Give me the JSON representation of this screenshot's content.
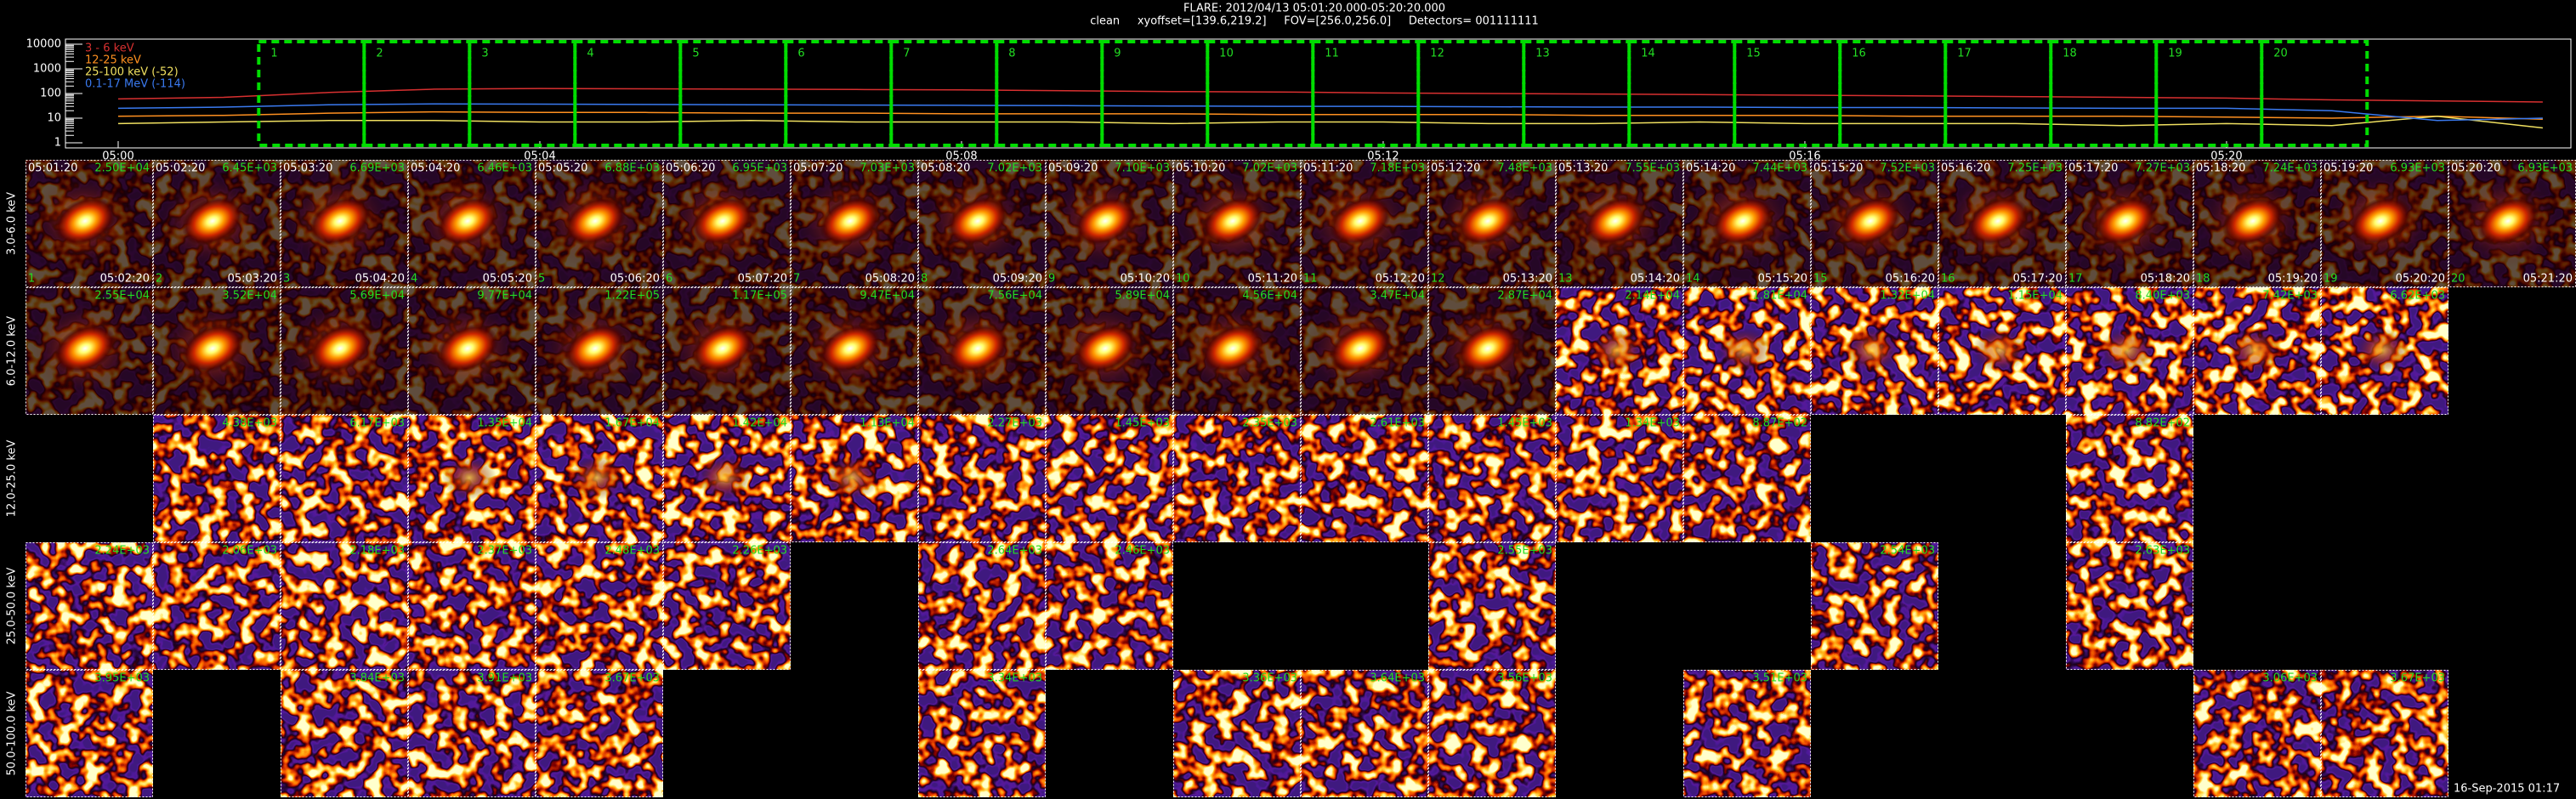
{
  "header": {
    "title": "FLARE: 2012/04/13 05:01:20.000-05:20:20.000",
    "subtitle": "clean     xyoffset=[139.6,219.2]     FOV=[256.0,256.0]     Detectors= 001111111"
  },
  "chart_data": {
    "type": "line",
    "log_scale": true,
    "x": [
      "05:00:00",
      "05:01:00",
      "05:02:00",
      "05:03:00",
      "05:04:00",
      "05:05:00",
      "05:06:00",
      "05:07:00",
      "05:08:00",
      "05:09:00",
      "05:10:00",
      "05:11:00",
      "05:12:00",
      "05:13:00",
      "05:14:00",
      "05:15:00",
      "05:16:00",
      "05:17:00",
      "05:18:00",
      "05:19:00",
      "05:20:00",
      "05:21:00",
      "05:22:00",
      "05:23:00"
    ],
    "series": [
      {
        "name": "3 - 6 keV",
        "color": "#d83030",
        "values": [
          60,
          70,
          110,
          150,
          160,
          155,
          150,
          145,
          140,
          130,
          120,
          115,
          105,
          100,
          95,
          90,
          85,
          80,
          75,
          70,
          65,
          55,
          50,
          45
        ]
      },
      {
        "name": "12-25 keV",
        "color": "#ff9020",
        "values": [
          12,
          13,
          16,
          18,
          17,
          17,
          16,
          16,
          15,
          15,
          15,
          14,
          14,
          14,
          13,
          13,
          13,
          12,
          12,
          12,
          11,
          10,
          12,
          9
        ]
      },
      {
        "name": "25-100 keV (-52)",
        "color": "#f0e060",
        "values": [
          6,
          7,
          8,
          8,
          7,
          7,
          8,
          7,
          7,
          7,
          6,
          7,
          7,
          6,
          6,
          7,
          6,
          6,
          6,
          5,
          6,
          5,
          12,
          4
        ]
      },
      {
        "name": "0.1-17 MeV (-114)",
        "color": "#3a7af0",
        "values": [
          25,
          28,
          35,
          38,
          37,
          36,
          35,
          34,
          33,
          32,
          31,
          30,
          30,
          29,
          28,
          28,
          27,
          27,
          26,
          25,
          25,
          20,
          8,
          10
        ]
      }
    ],
    "xlim": [
      "04:59:30",
      "05:23:16"
    ],
    "xticks": [
      "05:00",
      "05:04",
      "05:08",
      "05:12",
      "05:16",
      "05:20"
    ],
    "ylim": [
      0.62,
      16100
    ],
    "yticks": [
      1,
      10,
      100,
      1000,
      10000
    ],
    "legend": "upper left",
    "intervals": [
      {
        "label": "1",
        "start": "05:01:20",
        "end": "05:02:20"
      },
      {
        "label": "2",
        "start": "05:02:20",
        "end": "05:03:20"
      },
      {
        "label": "3",
        "start": "05:03:20",
        "end": "05:04:20"
      },
      {
        "label": "4",
        "start": "05:04:20",
        "end": "05:05:20"
      },
      {
        "label": "5",
        "start": "05:05:20",
        "end": "05:06:20"
      },
      {
        "label": "6",
        "start": "05:06:20",
        "end": "05:07:20"
      },
      {
        "label": "7",
        "start": "05:07:20",
        "end": "05:08:20"
      },
      {
        "label": "8",
        "start": "05:08:20",
        "end": "05:09:20"
      },
      {
        "label": "9",
        "start": "05:09:20",
        "end": "05:10:20"
      },
      {
        "label": "10",
        "start": "05:10:20",
        "end": "05:11:20"
      },
      {
        "label": "11",
        "start": "05:11:20",
        "end": "05:12:20"
      },
      {
        "label": "12",
        "start": "05:12:20",
        "end": "05:13:20"
      },
      {
        "label": "13",
        "start": "05:13:20",
        "end": "05:14:20"
      },
      {
        "label": "14",
        "start": "05:14:20",
        "end": "05:15:20"
      },
      {
        "label": "15",
        "start": "05:15:20",
        "end": "05:16:20"
      },
      {
        "label": "16",
        "start": "05:16:20",
        "end": "05:17:20"
      },
      {
        "label": "17",
        "start": "05:17:20",
        "end": "05:18:20"
      },
      {
        "label": "18",
        "start": "05:18:20",
        "end": "05:19:20"
      },
      {
        "label": "19",
        "start": "05:19:20",
        "end": "05:20:20"
      },
      {
        "label": "20",
        "start": "05:20:20",
        "end": "05:21:20"
      }
    ]
  },
  "image_grid": {
    "rows": [
      {
        "label": "3.0-6.0 keV",
        "cells": [
          {
            "index": "1",
            "start": "05:01:20",
            "end": "05:02:20",
            "peak": "2.50E+04"
          },
          {
            "index": "2",
            "start": "05:02:20",
            "end": "05:03:20",
            "peak": "6.45E+03"
          },
          {
            "index": "3",
            "start": "05:03:20",
            "end": "05:04:20",
            "peak": "6.69E+03"
          },
          {
            "index": "4",
            "start": "05:04:20",
            "end": "05:05:20",
            "peak": "6.46E+03"
          },
          {
            "index": "5",
            "start": "05:05:20",
            "end": "05:06:20",
            "peak": "6.88E+03"
          },
          {
            "index": "6",
            "start": "05:06:20",
            "end": "05:07:20",
            "peak": "6.95E+03"
          },
          {
            "index": "7",
            "start": "05:07:20",
            "end": "05:08:20",
            "peak": "7.03E+03"
          },
          {
            "index": "8",
            "start": "05:08:20",
            "end": "05:09:20",
            "peak": "7.02E+03"
          },
          {
            "index": "9",
            "start": "05:09:20",
            "end": "05:10:20",
            "peak": "7.10E+03"
          },
          {
            "index": "10",
            "start": "05:10:20",
            "end": "05:11:20",
            "peak": "7.02E+03"
          },
          {
            "index": "11",
            "start": "05:11:20",
            "end": "05:12:20",
            "peak": "7.18E+03"
          },
          {
            "index": "12",
            "start": "05:12:20",
            "end": "05:13:20",
            "peak": "7.48E+03"
          },
          {
            "index": "13",
            "start": "05:13:20",
            "end": "05:14:20",
            "peak": "7.55E+03"
          },
          {
            "index": "14",
            "start": "05:14:20",
            "end": "05:15:20",
            "peak": "7.44E+03"
          },
          {
            "index": "15",
            "start": "05:15:20",
            "end": "05:16:20",
            "peak": "7.52E+03"
          },
          {
            "index": "16",
            "start": "05:16:20",
            "end": "05:17:20",
            "peak": "7.25E+03"
          },
          {
            "index": "17",
            "start": "05:17:20",
            "end": "05:18:20",
            "peak": "7.27E+03"
          },
          {
            "index": "18",
            "start": "05:18:20",
            "end": "05:19:20",
            "peak": "7.24E+03"
          },
          {
            "index": "19",
            "start": "05:19:20",
            "end": "05:20:20",
            "peak": "6.93E+03"
          },
          {
            "index": "20",
            "start": "05:20:20",
            "end": "05:21:20",
            "peak": "6.93E+03"
          }
        ]
      },
      {
        "label": "6.0-12.0 keV",
        "cells": [
          {
            "peak": "2.55E+04"
          },
          {
            "peak": "3.52E+04"
          },
          {
            "peak": "5.69E+04"
          },
          {
            "peak": "9.77E+04"
          },
          {
            "peak": "1.22E+05"
          },
          {
            "peak": "1.17E+05"
          },
          {
            "peak": "9.47E+04"
          },
          {
            "peak": "7.56E+04"
          },
          {
            "peak": "5.89E+04"
          },
          {
            "peak": "4.56E+04"
          },
          {
            "peak": "3.47E+04"
          },
          {
            "peak": "2.87E+04"
          },
          {
            "peak": "2.14E+04"
          },
          {
            "peak": "1.81E+04"
          },
          {
            "peak": "1.32E+04"
          },
          {
            "peak": "1.15E+04"
          },
          {
            "peak": "8.40E+03"
          },
          {
            "peak": "7.42E+03"
          },
          {
            "peak": "6.62E+03"
          },
          null
        ]
      },
      {
        "label": "12.0-25.0 keV",
        "cells": [
          null,
          {
            "peak": "4.38E+03"
          },
          {
            "peak": "6.17E+03"
          },
          {
            "peak": "1.35E+04"
          },
          {
            "peak": "1.67E+04"
          },
          {
            "peak": "1.42E+04"
          },
          {
            "peak": "1.13E+04"
          },
          {
            "peak": "2.27E+03"
          },
          {
            "peak": "1.45E+03"
          },
          {
            "peak": "2.35E+03"
          },
          {
            "peak": "2.61E+03"
          },
          {
            "peak": "1.45E+03"
          },
          {
            "peak": "1.34E+03"
          },
          {
            "peak": "8.87E+02"
          },
          null,
          null,
          {
            "peak": "8.82E+02"
          },
          null,
          null,
          null
        ]
      },
      {
        "label": "25.0-50.0 keV",
        "cells": [
          {
            "peak": "2.24E+03"
          },
          {
            "peak": "2.06E+03"
          },
          {
            "peak": "2.18E+03"
          },
          {
            "peak": "2.37E+03"
          },
          {
            "peak": "2.48E+03"
          },
          {
            "peak": "2.26E+03"
          },
          null,
          {
            "peak": "2.64E+03"
          },
          {
            "peak": "2.46E+03"
          },
          null,
          null,
          {
            "peak": "2.55E+03"
          },
          null,
          null,
          {
            "peak": "2.54E+03"
          },
          null,
          {
            "peak": "2.63E+03"
          },
          null,
          null,
          null
        ]
      },
      {
        "label": "50.0-100.0 keV",
        "cells": [
          {
            "peak": "3.95E+03"
          },
          null,
          {
            "peak": "3.84E+03"
          },
          {
            "peak": "3.91E+03"
          },
          {
            "peak": "3.67E+03"
          },
          null,
          null,
          {
            "peak": "3.34E+03"
          },
          null,
          {
            "peak": "3.36E+03"
          },
          {
            "peak": "3.64E+03"
          },
          {
            "peak": "3.56E+03"
          },
          null,
          {
            "peak": "3.51E+03"
          },
          null,
          null,
          null,
          {
            "peak": "3.06E+03"
          },
          {
            "peak": "3.67E+03"
          },
          null
        ]
      }
    ]
  },
  "footer": "16-Sep-2015 01:17"
}
